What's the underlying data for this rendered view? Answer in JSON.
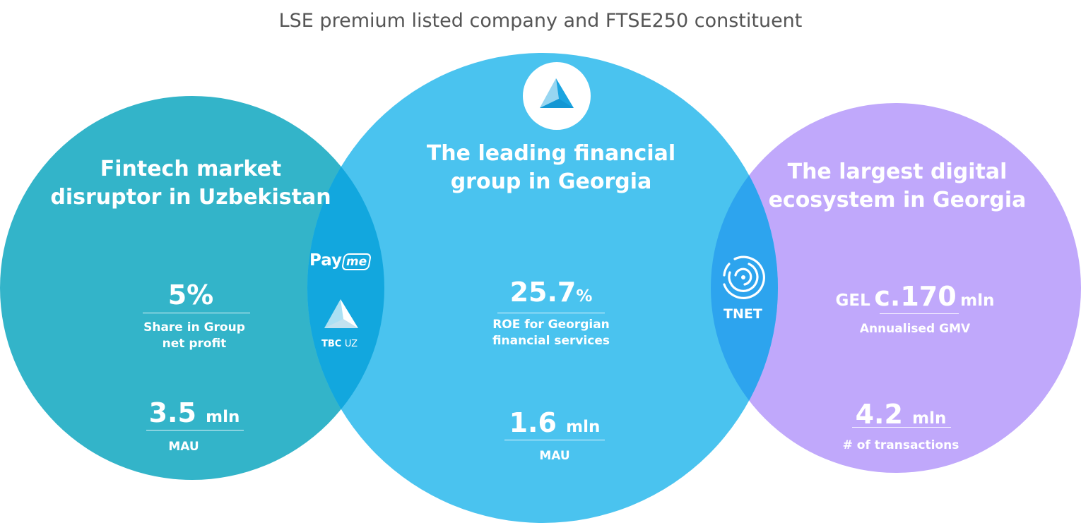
{
  "title": "LSE premium listed company and FTSE250 constituent",
  "colors": {
    "left": "#33b4c9",
    "center": "#4ac3ef",
    "right": "#c0a8fb",
    "overlap_left": "#12a7de",
    "overlap_right": "#2da4ee"
  },
  "left": {
    "heading_line1": "Fintech market",
    "heading_line2": "disruptor in Uzbekistan",
    "stat1_value": "5%",
    "stat1_label_line1": "Share in  Group",
    "stat1_label_line2": "net profit",
    "stat2_value": "3.5",
    "stat2_unit": "mln",
    "stat2_label": "MAU"
  },
  "center": {
    "logo_icon": "tbc-triangle-logo-icon",
    "heading_line1": "The leading financial",
    "heading_line2": "group in Georgia",
    "stat1_value": "25.7",
    "stat1_unit": "%",
    "stat1_label_line1": "ROE for Georgian",
    "stat1_label_line2": "financial services",
    "stat2_value": "1.6",
    "stat2_unit": "mln",
    "stat2_label": "MAU"
  },
  "right": {
    "heading_line1": "The largest digital",
    "heading_line2": "ecosystem in Georgia",
    "stat1_prefix": "GEL",
    "stat1_value": "c.170",
    "stat1_unit": "mln",
    "stat1_label": "Annualised GMV",
    "stat2_value": "4.2",
    "stat2_unit": "mln",
    "stat2_label": "# of transactions"
  },
  "overlap_left": {
    "payme_part1": "Pay",
    "payme_part2": "me",
    "tbc_uz_bold": "TBC",
    "tbc_uz_light": "UZ"
  },
  "overlap_right": {
    "tnet_icon": "tnet-concentric-circles-icon",
    "tnet_label": "TNET"
  }
}
